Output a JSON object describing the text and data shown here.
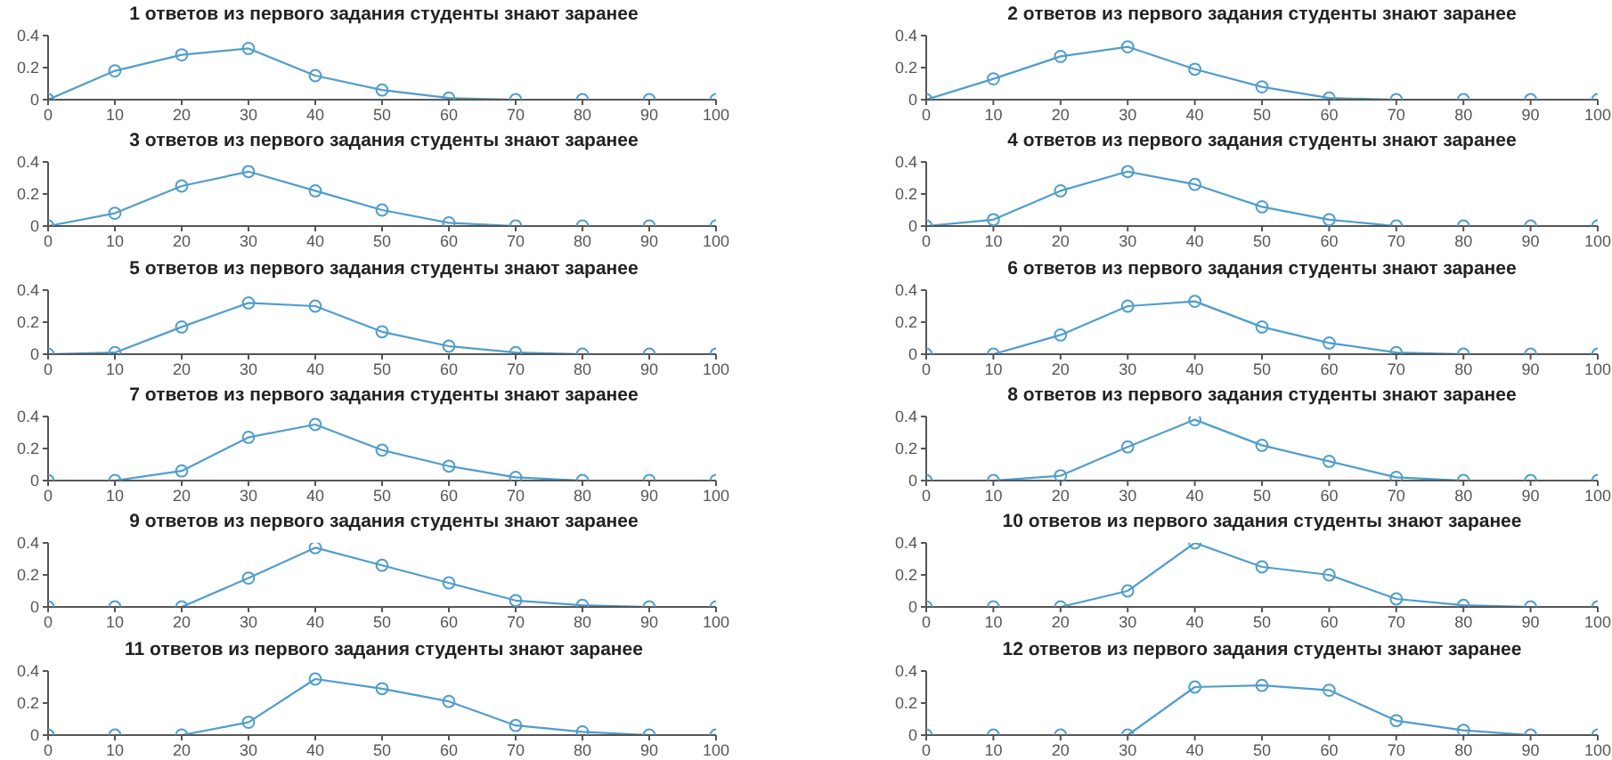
{
  "chart_data": [
    {
      "type": "line",
      "title": "1 ответов из первого задания студенты знают заранее",
      "x": [
        0,
        10,
        20,
        30,
        40,
        50,
        60,
        70,
        80,
        90,
        100
      ],
      "values": [
        0,
        0.18,
        0.28,
        0.32,
        0.15,
        0.06,
        0.01,
        0,
        0,
        0,
        0
      ],
      "color": "#4f9dcc",
      "marker": "circle",
      "xlim": [
        0,
        100
      ],
      "ylim": [
        0,
        0.4
      ],
      "xticks": [
        0,
        10,
        20,
        30,
        40,
        50,
        60,
        70,
        80,
        90,
        100
      ],
      "yticks": [
        0,
        0.2,
        0.4
      ]
    },
    {
      "type": "line",
      "title": "2 ответов из первого задания студенты знают заранее",
      "x": [
        0,
        10,
        20,
        30,
        40,
        50,
        60,
        70,
        80,
        90,
        100
      ],
      "values": [
        0,
        0.13,
        0.27,
        0.33,
        0.19,
        0.08,
        0.01,
        0,
        0,
        0,
        0
      ],
      "color": "#4f9dcc",
      "marker": "circle",
      "xlim": [
        0,
        100
      ],
      "ylim": [
        0,
        0.4
      ],
      "xticks": [
        0,
        10,
        20,
        30,
        40,
        50,
        60,
        70,
        80,
        90,
        100
      ],
      "yticks": [
        0,
        0.2,
        0.4
      ]
    },
    {
      "type": "line",
      "title": "3 ответов из первого задания студенты знают заранее",
      "x": [
        0,
        10,
        20,
        30,
        40,
        50,
        60,
        70,
        80,
        90,
        100
      ],
      "values": [
        0,
        0.08,
        0.25,
        0.34,
        0.22,
        0.1,
        0.02,
        0,
        0,
        0,
        0
      ],
      "color": "#4f9dcc",
      "marker": "circle",
      "xlim": [
        0,
        100
      ],
      "ylim": [
        0,
        0.4
      ],
      "xticks": [
        0,
        10,
        20,
        30,
        40,
        50,
        60,
        70,
        80,
        90,
        100
      ],
      "yticks": [
        0,
        0.2,
        0.4
      ]
    },
    {
      "type": "line",
      "title": "4 ответов из первого задания студенты знают заранее",
      "x": [
        0,
        10,
        20,
        30,
        40,
        50,
        60,
        70,
        80,
        90,
        100
      ],
      "values": [
        0,
        0.04,
        0.22,
        0.34,
        0.26,
        0.12,
        0.04,
        0,
        0,
        0,
        0
      ],
      "color": "#4f9dcc",
      "marker": "circle",
      "xlim": [
        0,
        100
      ],
      "ylim": [
        0,
        0.4
      ],
      "xticks": [
        0,
        10,
        20,
        30,
        40,
        50,
        60,
        70,
        80,
        90,
        100
      ],
      "yticks": [
        0,
        0.2,
        0.4
      ]
    },
    {
      "type": "line",
      "title": "5 ответов из первого задания студенты знают заранее",
      "x": [
        0,
        10,
        20,
        30,
        40,
        50,
        60,
        70,
        80,
        90,
        100
      ],
      "values": [
        0,
        0.01,
        0.17,
        0.32,
        0.3,
        0.14,
        0.05,
        0.01,
        0,
        0,
        0
      ],
      "color": "#4f9dcc",
      "marker": "circle",
      "xlim": [
        0,
        100
      ],
      "ylim": [
        0,
        0.4
      ],
      "xticks": [
        0,
        10,
        20,
        30,
        40,
        50,
        60,
        70,
        80,
        90,
        100
      ],
      "yticks": [
        0,
        0.2,
        0.4
      ]
    },
    {
      "type": "line",
      "title": "6 ответов из первого задания студенты знают заранее",
      "x": [
        0,
        10,
        20,
        30,
        40,
        50,
        60,
        70,
        80,
        90,
        100
      ],
      "values": [
        0,
        0,
        0.12,
        0.3,
        0.33,
        0.17,
        0.07,
        0.01,
        0,
        0,
        0
      ],
      "color": "#4f9dcc",
      "marker": "circle",
      "xlim": [
        0,
        100
      ],
      "ylim": [
        0,
        0.4
      ],
      "xticks": [
        0,
        10,
        20,
        30,
        40,
        50,
        60,
        70,
        80,
        90,
        100
      ],
      "yticks": [
        0,
        0.2,
        0.4
      ]
    },
    {
      "type": "line",
      "title": "7 ответов из первого задания студенты знают заранее",
      "x": [
        0,
        10,
        20,
        30,
        40,
        50,
        60,
        70,
        80,
        90,
        100
      ],
      "values": [
        0,
        0,
        0.06,
        0.27,
        0.35,
        0.19,
        0.09,
        0.02,
        0,
        0,
        0
      ],
      "color": "#4f9dcc",
      "marker": "circle",
      "xlim": [
        0,
        100
      ],
      "ylim": [
        0,
        0.4
      ],
      "xticks": [
        0,
        10,
        20,
        30,
        40,
        50,
        60,
        70,
        80,
        90,
        100
      ],
      "yticks": [
        0,
        0.2,
        0.4
      ]
    },
    {
      "type": "line",
      "title": "8 ответов из первого задания студенты знают заранее",
      "x": [
        0,
        10,
        20,
        30,
        40,
        50,
        60,
        70,
        80,
        90,
        100
      ],
      "values": [
        0,
        0,
        0.03,
        0.21,
        0.38,
        0.22,
        0.12,
        0.02,
        0,
        0,
        0
      ],
      "color": "#4f9dcc",
      "marker": "circle",
      "xlim": [
        0,
        100
      ],
      "ylim": [
        0,
        0.4
      ],
      "xticks": [
        0,
        10,
        20,
        30,
        40,
        50,
        60,
        70,
        80,
        90,
        100
      ],
      "yticks": [
        0,
        0.2,
        0.4
      ]
    },
    {
      "type": "line",
      "title": "9 ответов из первого задания студенты знают заранее",
      "x": [
        0,
        10,
        20,
        30,
        40,
        50,
        60,
        70,
        80,
        90,
        100
      ],
      "values": [
        0,
        0,
        0,
        0.18,
        0.37,
        0.26,
        0.15,
        0.04,
        0.01,
        0,
        0
      ],
      "color": "#4f9dcc",
      "marker": "circle",
      "xlim": [
        0,
        100
      ],
      "ylim": [
        0,
        0.4
      ],
      "xticks": [
        0,
        10,
        20,
        30,
        40,
        50,
        60,
        70,
        80,
        90,
        100
      ],
      "yticks": [
        0,
        0.2,
        0.4
      ]
    },
    {
      "type": "line",
      "title": "10 ответов из первого задания студенты знают заранее",
      "x": [
        0,
        10,
        20,
        30,
        40,
        50,
        60,
        70,
        80,
        90,
        100
      ],
      "values": [
        0,
        0,
        0,
        0.1,
        0.4,
        0.25,
        0.2,
        0.05,
        0.01,
        0,
        0
      ],
      "color": "#4f9dcc",
      "marker": "circle",
      "xlim": [
        0,
        100
      ],
      "ylim": [
        0,
        0.4
      ],
      "xticks": [
        0,
        10,
        20,
        30,
        40,
        50,
        60,
        70,
        80,
        90,
        100
      ],
      "yticks": [
        0,
        0.2,
        0.4
      ]
    },
    {
      "type": "line",
      "title": "11 ответов из первого задания студенты знают заранее",
      "x": [
        0,
        10,
        20,
        30,
        40,
        50,
        60,
        70,
        80,
        90,
        100
      ],
      "values": [
        0,
        0,
        0,
        0.08,
        0.35,
        0.29,
        0.21,
        0.06,
        0.02,
        0,
        0
      ],
      "color": "#4f9dcc",
      "marker": "circle",
      "xlim": [
        0,
        100
      ],
      "ylim": [
        0,
        0.4
      ],
      "xticks": [
        0,
        10,
        20,
        30,
        40,
        50,
        60,
        70,
        80,
        90,
        100
      ],
      "yticks": [
        0,
        0.2,
        0.4
      ]
    },
    {
      "type": "line",
      "title": "12 ответов из первого задания студенты знают заранее",
      "x": [
        0,
        10,
        20,
        30,
        40,
        50,
        60,
        70,
        80,
        90,
        100
      ],
      "values": [
        0,
        0,
        0,
        0,
        0.3,
        0.31,
        0.28,
        0.09,
        0.03,
        0,
        0
      ],
      "color": "#4f9dcc",
      "marker": "circle",
      "xlim": [
        0,
        100
      ],
      "ylim": [
        0,
        0.4
      ],
      "xticks": [
        0,
        10,
        20,
        30,
        40,
        50,
        60,
        70,
        80,
        90,
        100
      ],
      "yticks": [
        0,
        0.2,
        0.4
      ]
    }
  ]
}
